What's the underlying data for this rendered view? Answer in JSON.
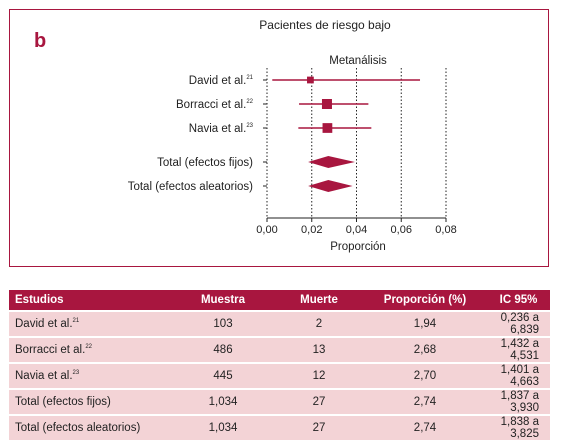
{
  "panel_label": "b",
  "chart_data": {
    "type": "forest",
    "title": "Pacientes de riesgo bajo",
    "subtitle": "Metanálisis",
    "xlabel": "Proporción",
    "xlim": [
      0.0,
      0.08
    ],
    "xticks": [
      "0,00",
      "0,02",
      "0,04",
      "0,06",
      "0,08"
    ],
    "xtick_values": [
      0.0,
      0.02,
      0.04,
      0.06,
      0.08
    ],
    "studies": [
      {
        "name": "David et al.",
        "ref": "21",
        "estimate": 0.0194,
        "ci_low": 0.00236,
        "ci_high": 0.06839,
        "weight": 103
      },
      {
        "name": "Borracci et al.",
        "ref": "22",
        "estimate": 0.0268,
        "ci_low": 0.01432,
        "ci_high": 0.04531,
        "weight": 486
      },
      {
        "name": "Navia et al.",
        "ref": "23",
        "estimate": 0.027,
        "ci_low": 0.01401,
        "ci_high": 0.04663,
        "weight": 445
      }
    ],
    "summaries": [
      {
        "name": "Total (efectos fijos)",
        "estimate": 0.0274,
        "ci_low": 0.01837,
        "ci_high": 0.0393
      },
      {
        "name": "Total (efectos aleatorios)",
        "estimate": 0.0274,
        "ci_low": 0.01838,
        "ci_high": 0.03825
      }
    ]
  },
  "table": {
    "headers": [
      "Estudios",
      "Muestra",
      "Muerte",
      "Proporción (%)",
      "IC 95%"
    ],
    "rows": [
      {
        "name": "David et al.",
        "ref": "21",
        "muestra": "103",
        "muerte": "2",
        "proporcion": "1,94",
        "ic": "0,236 a 6,839"
      },
      {
        "name": "Borracci et al.",
        "ref": "22",
        "muestra": "486",
        "muerte": "13",
        "proporcion": "2,68",
        "ic": "1,432 a 4,531"
      },
      {
        "name": "Navia et al.",
        "ref": "23",
        "muestra": "445",
        "muerte": "12",
        "proporcion": "2,70",
        "ic": "1,401 a 4,663"
      },
      {
        "name": "Total (efectos fijos)",
        "ref": "",
        "muestra": "1,034",
        "muerte": "27",
        "proporcion": "2,74",
        "ic": "1,837 a 3,930"
      },
      {
        "name": "Total (efectos aleatorios)",
        "ref": "",
        "muestra": "1,034",
        "muerte": "27",
        "proporcion": "2,74",
        "ic": "1,838 a 3,825"
      }
    ]
  },
  "colors": {
    "accent": "#a8163f",
    "row_bg": "#f3d3d6",
    "ink": "#222222"
  }
}
